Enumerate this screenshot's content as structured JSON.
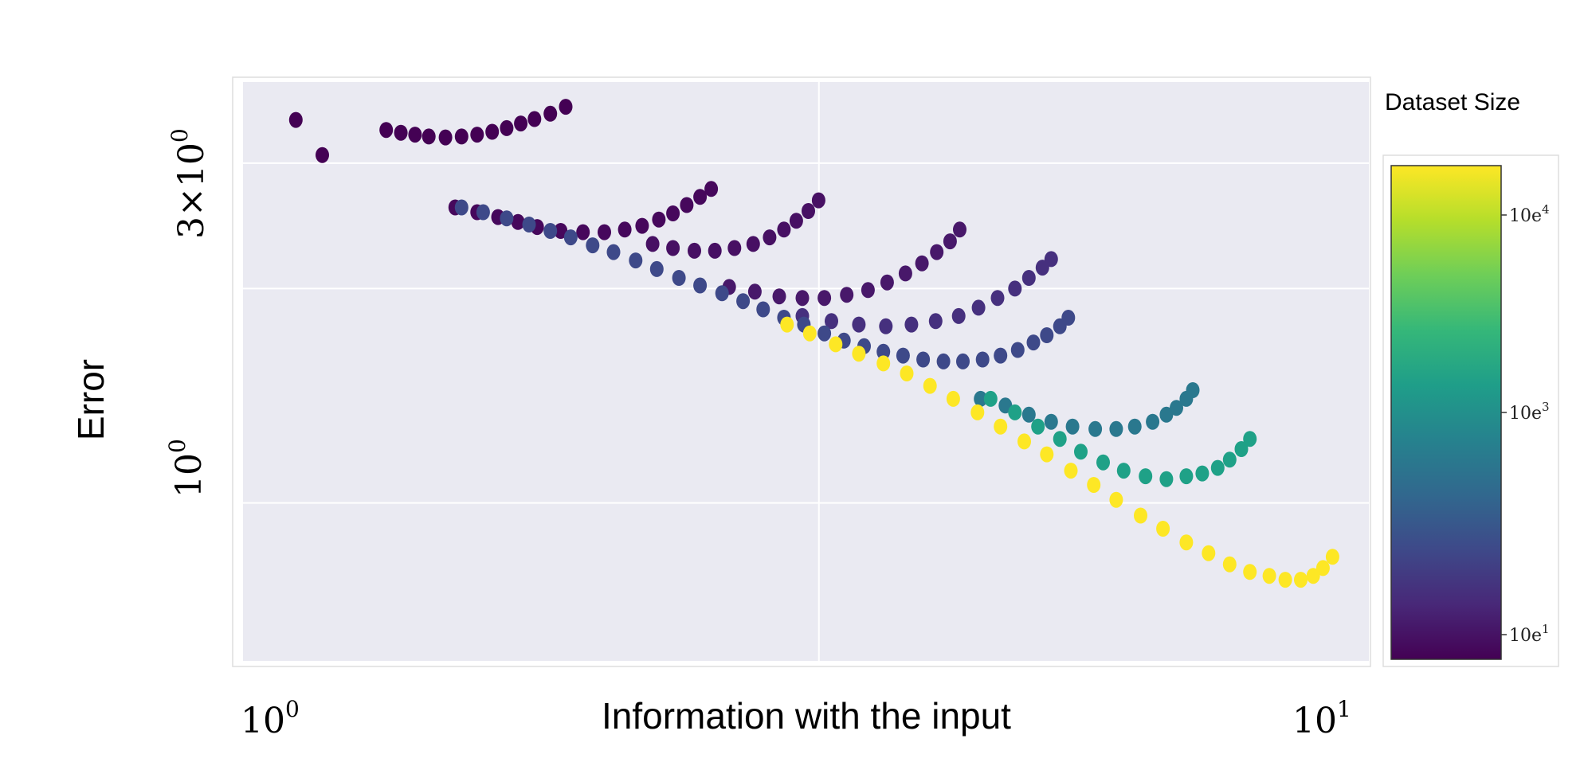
{
  "chart_data": {
    "type": "scatter",
    "title": "",
    "xlabel": "Information with the input",
    "ylabel": "Error",
    "x_scale": "log",
    "y_scale": "log",
    "xlim": [
      0.9,
      10.5
    ],
    "ylim": [
      0.6,
      3.9
    ],
    "x_tick_labels": [
      {
        "value": 1,
        "base": "10",
        "exp": "0"
      },
      {
        "value": 10,
        "base": "10",
        "exp": "1"
      }
    ],
    "y_tick_labels": [
      {
        "value": 1,
        "base": "10",
        "exp": "0",
        "prefix": ""
      },
      {
        "value": 3,
        "base": "10",
        "exp": "0",
        "prefix": "3×"
      }
    ],
    "grid": true,
    "colorbar": {
      "title": "Dataset Size",
      "colormap": [
        "#440154",
        "#482878",
        "#3e4989",
        "#31688e",
        "#26828e",
        "#1f9e89",
        "#35b779",
        "#6ece58",
        "#b5de2b",
        "#fde725"
      ],
      "ticks": [
        {
          "label": "10e",
          "exp": "1",
          "frac": 0.05
        },
        {
          "label": "10e",
          "exp": "3",
          "frac": 0.5
        },
        {
          "label": "10e",
          "exp": "4",
          "frac": 0.9
        }
      ]
    },
    "series": [
      {
        "color": "#440154",
        "points": [
          [
            1.01,
            3.45
          ],
          [
            1.07,
            3.08
          ]
        ]
      },
      {
        "color": "#440154",
        "points": [
          [
            1.23,
            3.34
          ],
          [
            1.27,
            3.31
          ],
          [
            1.31,
            3.29
          ],
          [
            1.35,
            3.27
          ],
          [
            1.4,
            3.26
          ],
          [
            1.45,
            3.27
          ],
          [
            1.5,
            3.29
          ],
          [
            1.55,
            3.32
          ],
          [
            1.6,
            3.36
          ],
          [
            1.65,
            3.41
          ],
          [
            1.7,
            3.46
          ],
          [
            1.76,
            3.52
          ],
          [
            1.82,
            3.6
          ]
        ]
      },
      {
        "color": "#46085c",
        "points": [
          [
            1.43,
            2.6
          ],
          [
            1.5,
            2.56
          ],
          [
            1.57,
            2.52
          ],
          [
            1.64,
            2.48
          ],
          [
            1.71,
            2.44
          ],
          [
            1.8,
            2.41
          ],
          [
            1.89,
            2.4
          ],
          [
            1.98,
            2.4
          ],
          [
            2.07,
            2.42
          ],
          [
            2.15,
            2.45
          ],
          [
            2.23,
            2.5
          ],
          [
            2.3,
            2.55
          ],
          [
            2.37,
            2.62
          ],
          [
            2.44,
            2.69
          ],
          [
            2.5,
            2.76
          ]
        ]
      },
      {
        "color": "#471063",
        "points": [
          [
            2.2,
            2.31
          ],
          [
            2.3,
            2.28
          ],
          [
            2.41,
            2.26
          ],
          [
            2.52,
            2.26
          ],
          [
            2.63,
            2.28
          ],
          [
            2.74,
            2.31
          ],
          [
            2.84,
            2.36
          ],
          [
            2.93,
            2.42
          ],
          [
            3.01,
            2.49
          ],
          [
            3.09,
            2.57
          ],
          [
            3.16,
            2.66
          ]
        ]
      },
      {
        "color": "#48186a",
        "points": [
          [
            2.6,
            2.01
          ],
          [
            2.75,
            1.98
          ],
          [
            2.9,
            1.95
          ],
          [
            3.05,
            1.94
          ],
          [
            3.2,
            1.94
          ],
          [
            3.36,
            1.96
          ],
          [
            3.52,
            1.99
          ],
          [
            3.67,
            2.04
          ],
          [
            3.82,
            2.1
          ],
          [
            3.96,
            2.17
          ],
          [
            4.09,
            2.25
          ],
          [
            4.21,
            2.33
          ],
          [
            4.3,
            2.42
          ]
        ]
      },
      {
        "color": "#46307e",
        "points": [
          [
            3.05,
            1.83
          ],
          [
            3.25,
            1.8
          ],
          [
            3.45,
            1.78
          ],
          [
            3.66,
            1.77
          ],
          [
            3.87,
            1.78
          ],
          [
            4.08,
            1.8
          ],
          [
            4.29,
            1.83
          ],
          [
            4.48,
            1.88
          ],
          [
            4.67,
            1.94
          ],
          [
            4.85,
            2.0
          ],
          [
            5.0,
            2.07
          ],
          [
            5.15,
            2.14
          ],
          [
            5.25,
            2.2
          ]
        ]
      },
      {
        "color": "#3e4989",
        "points": [
          [
            1.45,
            2.6
          ],
          [
            1.52,
            2.56
          ],
          [
            1.6,
            2.51
          ],
          [
            1.68,
            2.46
          ],
          [
            1.76,
            2.41
          ],
          [
            1.84,
            2.36
          ],
          [
            1.93,
            2.3
          ],
          [
            2.02,
            2.25
          ],
          [
            2.12,
            2.19
          ],
          [
            2.22,
            2.13
          ],
          [
            2.33,
            2.07
          ],
          [
            2.44,
            2.02
          ],
          [
            2.56,
            1.97
          ],
          [
            2.68,
            1.92
          ],
          [
            2.8,
            1.87
          ],
          [
            2.93,
            1.82
          ],
          [
            3.06,
            1.78
          ],
          [
            3.2,
            1.73
          ],
          [
            3.34,
            1.69
          ],
          [
            3.49,
            1.66
          ],
          [
            3.64,
            1.63
          ],
          [
            3.8,
            1.61
          ],
          [
            3.97,
            1.59
          ],
          [
            4.15,
            1.58
          ],
          [
            4.33,
            1.58
          ],
          [
            4.52,
            1.59
          ],
          [
            4.7,
            1.61
          ],
          [
            4.88,
            1.64
          ],
          [
            5.05,
            1.68
          ],
          [
            5.2,
            1.72
          ],
          [
            5.35,
            1.77
          ],
          [
            5.45,
            1.82
          ]
        ]
      },
      {
        "color": "#2a788e",
        "points": [
          [
            4.5,
            1.4
          ],
          [
            4.75,
            1.37
          ],
          [
            5.0,
            1.33
          ],
          [
            5.25,
            1.3
          ],
          [
            5.5,
            1.28
          ],
          [
            5.78,
            1.27
          ],
          [
            6.05,
            1.27
          ],
          [
            6.3,
            1.28
          ],
          [
            6.55,
            1.3
          ],
          [
            6.75,
            1.33
          ],
          [
            6.9,
            1.36
          ],
          [
            7.05,
            1.4
          ],
          [
            7.15,
            1.44
          ]
        ]
      },
      {
        "color": "#1fa187",
        "points": [
          [
            4.6,
            1.4
          ],
          [
            4.85,
            1.34
          ],
          [
            5.1,
            1.28
          ],
          [
            5.35,
            1.23
          ],
          [
            5.6,
            1.18
          ],
          [
            5.88,
            1.14
          ],
          [
            6.15,
            1.11
          ],
          [
            6.45,
            1.09
          ],
          [
            6.75,
            1.08
          ],
          [
            7.05,
            1.09
          ],
          [
            7.3,
            1.1
          ],
          [
            7.55,
            1.12
          ],
          [
            7.75,
            1.15
          ],
          [
            7.95,
            1.19
          ],
          [
            8.1,
            1.23
          ]
        ]
      },
      {
        "color": "#fde725",
        "points": [
          [
            2.95,
            1.78
          ],
          [
            3.1,
            1.73
          ],
          [
            3.28,
            1.67
          ],
          [
            3.45,
            1.62
          ],
          [
            3.64,
            1.57
          ],
          [
            3.83,
            1.52
          ],
          [
            4.03,
            1.46
          ],
          [
            4.24,
            1.4
          ],
          [
            4.47,
            1.34
          ],
          [
            4.7,
            1.28
          ],
          [
            4.95,
            1.22
          ],
          [
            5.2,
            1.17
          ],
          [
            5.48,
            1.11
          ],
          [
            5.76,
            1.06
          ],
          [
            6.05,
            1.01
          ],
          [
            6.38,
            0.96
          ],
          [
            6.7,
            0.92
          ],
          [
            7.05,
            0.88
          ],
          [
            7.4,
            0.85
          ],
          [
            7.75,
            0.82
          ],
          [
            8.1,
            0.8
          ],
          [
            8.45,
            0.79
          ],
          [
            8.75,
            0.78
          ],
          [
            9.05,
            0.78
          ],
          [
            9.3,
            0.79
          ],
          [
            9.5,
            0.81
          ],
          [
            9.7,
            0.84
          ]
        ]
      }
    ]
  }
}
